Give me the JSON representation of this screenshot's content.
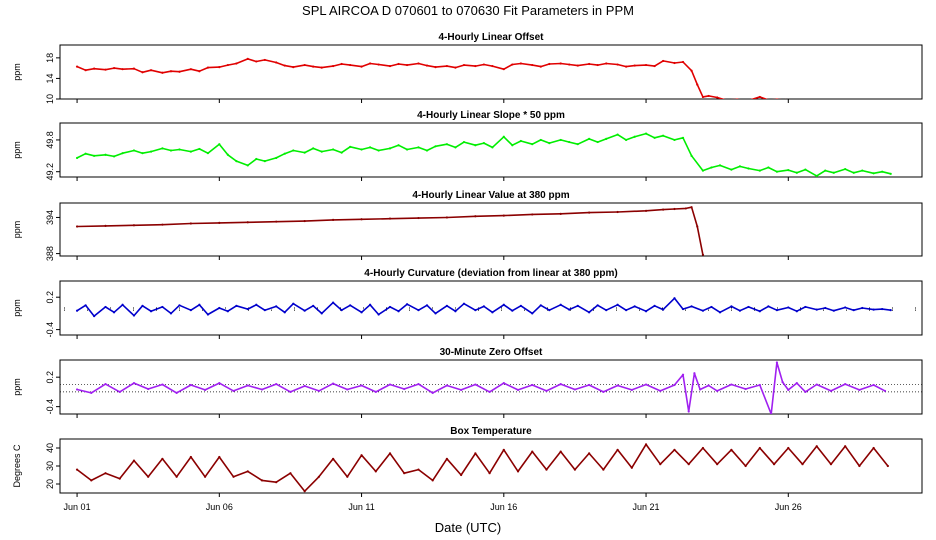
{
  "figure": {
    "title": "SPL   AIRCOA D   070601 to 070630   Fit Parameters in PPM",
    "xlabel": "Date (UTC)",
    "xticks": [
      "Jun 01",
      "Jun 06",
      "Jun 11",
      "Jun 16",
      "Jun 21",
      "Jun 26"
    ]
  },
  "colors": {
    "offset": "#e00000",
    "slope": "#00ee00",
    "value": "#8b0000",
    "curvature": "#0000cc",
    "zero": "#a020f0",
    "temperature": "#8b0000"
  },
  "chart_data": [
    {
      "type": "line",
      "title": "4-Hourly Linear Offset",
      "ylabel": "ppm",
      "yticks": [
        "10",
        "14",
        "18"
      ],
      "ylim": [
        10,
        20.5
      ],
      "xlim": [
        0.4,
        30.7
      ],
      "series_color": "offset",
      "x": [
        1.0,
        1.3,
        1.6,
        2.0,
        2.3,
        2.6,
        3.0,
        3.3,
        3.6,
        4.0,
        4.3,
        4.6,
        5.0,
        5.3,
        5.6,
        6.0,
        6.3,
        6.6,
        7.0,
        7.3,
        7.6,
        8.0,
        8.3,
        8.6,
        9.0,
        9.3,
        9.6,
        10.0,
        10.3,
        10.6,
        11.0,
        11.3,
        11.6,
        12.0,
        12.3,
        12.6,
        13.0,
        13.3,
        13.6,
        14.0,
        14.3,
        14.6,
        15.0,
        15.3,
        15.6,
        16.0,
        16.3,
        16.6,
        17.0,
        17.3,
        17.6,
        18.0,
        18.3,
        18.6,
        19.0,
        19.3,
        19.6,
        20.0,
        20.3,
        20.6,
        21.0,
        21.3,
        21.6,
        22.0,
        22.3,
        22.6,
        22.8,
        23.0,
        23.2,
        23.5,
        23.8,
        24.2,
        24.6,
        25.0,
        25.3,
        25.6,
        25.9
      ],
      "y": [
        16.3,
        15.6,
        15.9,
        15.7,
        16.0,
        15.8,
        15.9,
        15.2,
        15.6,
        15.1,
        15.4,
        15.3,
        15.8,
        15.4,
        16.1,
        16.2,
        16.6,
        16.9,
        17.8,
        17.3,
        17.6,
        17.1,
        16.5,
        16.2,
        16.6,
        16.3,
        16.1,
        16.4,
        16.8,
        16.6,
        16.3,
        16.9,
        16.7,
        16.4,
        16.8,
        16.6,
        16.9,
        16.5,
        16.2,
        16.4,
        16.1,
        16.6,
        16.4,
        16.7,
        16.4,
        15.8,
        16.7,
        16.9,
        16.6,
        16.3,
        16.8,
        16.9,
        16.7,
        16.5,
        16.8,
        16.6,
        16.9,
        16.7,
        16.3,
        16.5,
        16.6,
        16.4,
        17.4,
        17.0,
        17.2,
        15.5,
        12.8,
        10.4,
        10.6,
        10.3,
        9.8,
        9.9,
        9.7,
        10.4,
        9.8,
        9.9,
        9.8
      ]
    },
    {
      "type": "line",
      "title": "4-Hourly Linear Slope * 50 ppm",
      "ylabel": "ppm",
      "yticks": [
        "49.2",
        "49.8"
      ],
      "ylim": [
        49.1,
        50.12
      ],
      "xlim": [
        0.4,
        30.7
      ],
      "series_color": "slope",
      "x": [
        1.0,
        1.3,
        1.6,
        2.0,
        2.3,
        2.6,
        3.0,
        3.3,
        3.6,
        4.0,
        4.3,
        4.6,
        5.0,
        5.3,
        5.6,
        6.0,
        6.3,
        6.6,
        7.0,
        7.3,
        7.6,
        8.0,
        8.3,
        8.6,
        9.0,
        9.3,
        9.6,
        10.0,
        10.3,
        10.6,
        11.0,
        11.3,
        11.6,
        12.0,
        12.3,
        12.6,
        13.0,
        13.3,
        13.6,
        14.0,
        14.3,
        14.6,
        15.0,
        15.3,
        15.6,
        16.0,
        16.3,
        16.6,
        17.0,
        17.3,
        17.6,
        18.0,
        18.3,
        18.6,
        19.0,
        19.3,
        19.6,
        20.0,
        20.3,
        20.6,
        21.0,
        21.3,
        21.6,
        22.0,
        22.3,
        22.6,
        23.0,
        23.3,
        23.6,
        24.0,
        24.3,
        24.6,
        25.0,
        25.3,
        25.6,
        26.0,
        26.3,
        26.6,
        27.0,
        27.3,
        27.6,
        28.0,
        28.3,
        28.6,
        29.0,
        29.3,
        29.6
      ],
      "y": [
        49.46,
        49.54,
        49.5,
        49.52,
        49.49,
        49.55,
        49.6,
        49.55,
        49.58,
        49.64,
        49.6,
        49.62,
        49.58,
        49.63,
        49.55,
        49.72,
        49.52,
        49.4,
        49.32,
        49.44,
        49.4,
        49.46,
        49.54,
        49.6,
        49.56,
        49.64,
        49.58,
        49.62,
        49.56,
        49.67,
        49.62,
        49.66,
        49.6,
        49.64,
        49.7,
        49.62,
        49.66,
        49.6,
        49.68,
        49.72,
        49.66,
        49.76,
        49.7,
        49.74,
        49.66,
        49.86,
        49.7,
        49.78,
        49.72,
        49.8,
        49.74,
        49.8,
        49.76,
        49.72,
        49.82,
        49.76,
        49.82,
        49.9,
        49.8,
        49.86,
        49.92,
        49.84,
        49.88,
        49.8,
        49.84,
        49.5,
        49.22,
        49.28,
        49.32,
        49.24,
        49.3,
        49.26,
        49.22,
        49.28,
        49.2,
        49.23,
        49.18,
        49.24,
        49.12,
        49.22,
        49.18,
        49.25,
        49.18,
        49.22,
        49.17,
        49.2,
        49.16
      ]
    },
    {
      "type": "line",
      "title": "4-Hourly Linear Value at 380 ppm",
      "ylabel": "ppm",
      "yticks": [
        "388",
        "394"
      ],
      "ylim": [
        387.6,
        396.4
      ],
      "xlim": [
        0.4,
        30.7
      ],
      "series_color": "value",
      "x": [
        1.0,
        2.0,
        3.0,
        4.0,
        5.0,
        6.0,
        7.0,
        8.0,
        9.0,
        10.0,
        11.0,
        12.0,
        13.0,
        14.0,
        15.0,
        16.0,
        17.0,
        18.0,
        19.0,
        20.0,
        21.0,
        21.6,
        22.0,
        22.4,
        22.6,
        22.8,
        23.0
      ],
      "y": [
        392.5,
        392.6,
        392.7,
        392.8,
        393.0,
        393.1,
        393.2,
        393.3,
        393.4,
        393.6,
        393.7,
        393.8,
        393.9,
        394.0,
        394.2,
        394.3,
        394.5,
        394.6,
        394.8,
        394.9,
        395.1,
        395.3,
        395.4,
        395.5,
        395.7,
        392.5,
        387.8
      ]
    },
    {
      "type": "line",
      "title": "4-Hourly Curvature (deviation from linear at 380 ppm)",
      "ylabel": "ppm",
      "yticks": [
        "-0.4",
        "0.2"
      ],
      "ylim": [
        -0.5,
        0.5
      ],
      "xlim": [
        0.4,
        30.7
      ],
      "series_color": "curvature",
      "x": [
        1.0,
        1.3,
        1.6,
        2.0,
        2.3,
        2.6,
        3.0,
        3.3,
        3.6,
        4.0,
        4.3,
        4.6,
        5.0,
        5.3,
        5.6,
        6.0,
        6.3,
        6.6,
        7.0,
        7.3,
        7.6,
        8.0,
        8.3,
        8.6,
        9.0,
        9.3,
        9.6,
        10.0,
        10.3,
        10.6,
        11.0,
        11.3,
        11.6,
        12.0,
        12.3,
        12.6,
        13.0,
        13.3,
        13.6,
        14.0,
        14.3,
        14.6,
        15.0,
        15.3,
        15.6,
        16.0,
        16.3,
        16.6,
        17.0,
        17.3,
        17.6,
        18.0,
        18.3,
        18.6,
        19.0,
        19.3,
        19.6,
        20.0,
        20.3,
        20.6,
        21.0,
        21.3,
        21.6,
        22.0,
        22.3,
        22.6,
        23.0,
        23.3,
        23.6,
        24.0,
        24.3,
        24.6,
        25.0,
        25.3,
        25.6,
        26.0,
        26.3,
        26.6,
        27.0,
        27.3,
        27.6,
        28.0,
        28.3,
        28.6,
        29.0,
        29.3,
        29.6
      ],
      "y": [
        -0.05,
        0.05,
        -0.15,
        0.02,
        -0.08,
        0.06,
        -0.14,
        0.04,
        -0.06,
        0.02,
        -0.1,
        0.05,
        -0.04,
        0.06,
        -0.12,
        0.0,
        -0.06,
        0.04,
        -0.02,
        0.06,
        -0.04,
        0.03,
        -0.08,
        0.08,
        -0.05,
        0.04,
        -0.1,
        0.1,
        -0.04,
        0.05,
        -0.08,
        0.06,
        -0.12,
        0.02,
        -0.06,
        0.07,
        -0.04,
        0.05,
        -0.1,
        0.04,
        -0.06,
        0.08,
        -0.04,
        0.03,
        -0.08,
        0.06,
        -0.05,
        0.04,
        -0.1,
        0.05,
        -0.04,
        0.06,
        -0.03,
        0.04,
        -0.08,
        0.05,
        -0.04,
        0.06,
        -0.04,
        0.03,
        -0.06,
        0.04,
        -0.03,
        0.18,
        -0.02,
        0.03,
        -0.05,
        0.02,
        -0.08,
        0.03,
        -0.05,
        0.02,
        -0.06,
        0.03,
        -0.04,
        0.01,
        -0.06,
        0.02,
        -0.03,
        0.0,
        -0.05,
        0.01,
        -0.04,
        0.0,
        -0.03,
        -0.02,
        -0.04
      ],
      "reference_points": [
        0.0,
        -0.04
      ]
    },
    {
      "type": "line",
      "title": "30-Minute Zero Offset",
      "ylabel": "ppm",
      "yticks": [
        "-0.4",
        "0.2"
      ],
      "ylim": [
        -0.55,
        0.55
      ],
      "xlim": [
        0.4,
        30.7
      ],
      "series_color": "zero",
      "reference_lines": [
        0.05,
        -0.1
      ],
      "x": [
        1.0,
        1.5,
        2.0,
        2.5,
        3.0,
        3.5,
        4.0,
        4.5,
        5.0,
        5.5,
        6.0,
        6.5,
        7.0,
        7.5,
        8.0,
        8.5,
        9.0,
        9.5,
        10.0,
        10.5,
        11.0,
        11.5,
        12.0,
        12.5,
        13.0,
        13.5,
        14.0,
        14.5,
        15.0,
        15.5,
        16.0,
        16.5,
        17.0,
        17.5,
        18.0,
        18.5,
        19.0,
        19.5,
        20.0,
        20.5,
        21.0,
        21.5,
        22.0,
        22.3,
        22.5,
        22.7,
        22.9,
        23.2,
        23.5,
        24.0,
        24.5,
        25.0,
        25.4,
        25.6,
        25.8,
        26.0,
        26.3,
        26.6,
        27.0,
        27.5,
        28.0,
        28.5,
        29.0,
        29.4
      ],
      "y": [
        -0.05,
        -0.12,
        0.06,
        -0.1,
        0.08,
        -0.04,
        0.05,
        -0.12,
        0.04,
        -0.06,
        0.08,
        -0.08,
        0.03,
        -0.05,
        0.06,
        -0.1,
        0.02,
        -0.08,
        0.07,
        -0.05,
        0.03,
        -0.1,
        0.05,
        -0.04,
        0.06,
        -0.12,
        0.03,
        -0.06,
        0.05,
        -0.1,
        0.08,
        -0.06,
        0.04,
        -0.08,
        0.06,
        -0.05,
        0.04,
        -0.1,
        0.03,
        -0.06,
        0.05,
        -0.08,
        0.04,
        0.25,
        -0.5,
        0.28,
        -0.05,
        0.03,
        -0.08,
        0.05,
        -0.04,
        0.04,
        -0.55,
        0.5,
        0.1,
        -0.06,
        0.08,
        -0.1,
        0.05,
        -0.08,
        0.06,
        -0.06,
        0.04,
        -0.08
      ]
    },
    {
      "type": "line",
      "title": "Box Temperature",
      "ylabel": "Degrees C",
      "yticks": [
        "20",
        "30",
        "40"
      ],
      "ylim": [
        15,
        45
      ],
      "xlim": [
        0.4,
        30.7
      ],
      "series_color": "temperature",
      "x": [
        1.0,
        1.5,
        2.0,
        2.5,
        3.0,
        3.5,
        4.0,
        4.5,
        5.0,
        5.5,
        6.0,
        6.5,
        7.0,
        7.5,
        8.0,
        8.5,
        9.0,
        9.5,
        10.0,
        10.5,
        11.0,
        11.5,
        12.0,
        12.5,
        13.0,
        13.5,
        14.0,
        14.5,
        15.0,
        15.5,
        16.0,
        16.5,
        17.0,
        17.5,
        18.0,
        18.5,
        19.0,
        19.5,
        20.0,
        20.5,
        21.0,
        21.5,
        22.0,
        22.5,
        23.0,
        23.5,
        24.0,
        24.5,
        25.0,
        25.5,
        26.0,
        26.5,
        27.0,
        27.5,
        28.0,
        28.5,
        29.0,
        29.5
      ],
      "y": [
        28,
        22,
        26,
        23,
        33,
        24,
        34,
        24,
        35,
        24,
        35,
        24,
        27,
        22,
        21,
        26,
        16,
        24,
        34,
        24,
        36,
        27,
        37,
        26,
        28,
        22,
        34,
        25,
        37,
        26,
        39,
        27,
        38,
        28,
        38,
        28,
        37,
        28,
        39,
        29,
        42,
        31,
        39,
        31,
        40,
        31,
        39,
        30,
        40,
        31,
        40,
        31,
        41,
        31,
        41,
        30,
        40,
        30
      ]
    }
  ]
}
